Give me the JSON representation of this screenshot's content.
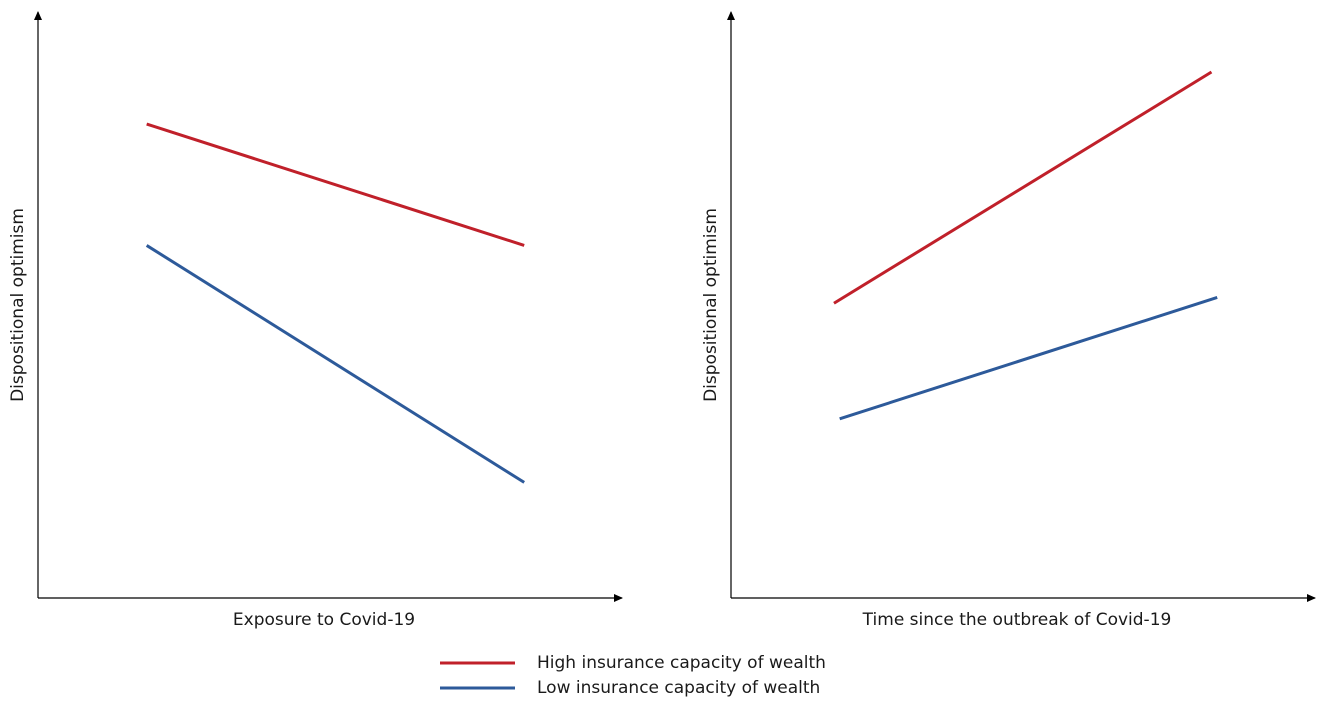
{
  "charts": [
    {
      "chart_data": {
        "type": "line",
        "xlabel": "Exposure to Covid-19",
        "ylabel": "Dispositional optimism",
        "xlim": [
          0,
          100
        ],
        "ylim": [
          0,
          100
        ],
        "series": [
          {
            "color": "#c0202a",
            "x": [
              19,
              85
            ],
            "values": [
              82,
              61
            ]
          },
          {
            "color": "#2d5a9a",
            "x": [
              19,
              85
            ],
            "values": [
              61,
              20
            ]
          }
        ]
      }
    },
    {
      "chart_data": {
        "type": "line",
        "xlabel": "Time since the outbreak of Covid-19",
        "ylabel": "Dispositional optimism",
        "xlim": [
          0,
          100
        ],
        "ylim": [
          0,
          100
        ],
        "series": [
          {
            "color": "#c0202a",
            "x": [
              18,
              84
            ],
            "values": [
              51,
              91
            ]
          },
          {
            "color": "#2d5a9a",
            "x": [
              19,
              85
            ],
            "values": [
              31,
              52
            ]
          }
        ]
      }
    }
  ],
  "legend": [
    {
      "name": "High insurance capacity of wealth",
      "color": "#c0202a"
    },
    {
      "name": "Low insurance capacity of wealth",
      "color": "#2d5a9a"
    }
  ]
}
